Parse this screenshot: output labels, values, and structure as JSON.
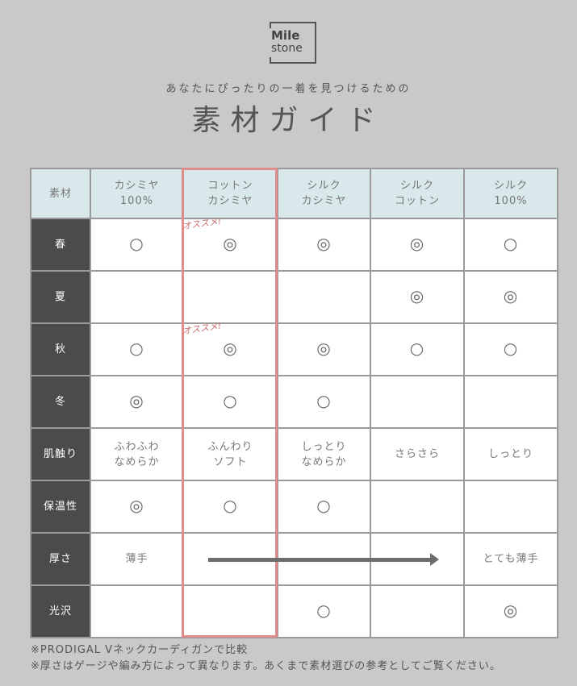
{
  "logo": {
    "line1": "Mile",
    "line2": "stone"
  },
  "subtitle": "あなたにぴったりの一着を見つけるための",
  "title": "素材ガイド",
  "table": {
    "corner": "素材",
    "columns": [
      [
        "カシミヤ",
        "100%"
      ],
      [
        "コットン",
        "カシミヤ"
      ],
      [
        "シルク",
        "カシミヤ"
      ],
      [
        "シルク",
        "コットン"
      ],
      [
        "シルク",
        "100%"
      ]
    ],
    "highlight_column": 1,
    "recommend_label": "オススメ!",
    "rows": [
      {
        "label": "春",
        "cells": [
          "○",
          "◎",
          "◎",
          "◎",
          "○"
        ],
        "recommend": true
      },
      {
        "label": "夏",
        "cells": [
          "",
          "",
          "",
          "◎",
          "◎"
        ]
      },
      {
        "label": "秋",
        "cells": [
          "○",
          "◎",
          "◎",
          "○",
          "○"
        ],
        "recommend": true
      },
      {
        "label": "冬",
        "cells": [
          "◎",
          "○",
          "○",
          "",
          ""
        ]
      },
      {
        "label": "肌触り",
        "cells": [
          [
            "ふわふわ",
            "なめらか"
          ],
          [
            "ふんわり",
            "ソフト"
          ],
          [
            "しっとり",
            "なめらか"
          ],
          "さらさら",
          "しっとり"
        ]
      },
      {
        "label": "保温性",
        "cells": [
          "◎",
          "○",
          "○",
          "",
          ""
        ]
      },
      {
        "label": "厚さ",
        "cells": [
          "薄手",
          "",
          "",
          "",
          "とても薄手"
        ]
      },
      {
        "label": "光沢",
        "cells": [
          "",
          "",
          "○",
          "",
          "◎"
        ]
      }
    ]
  },
  "notes": [
    "※PRODIGAL Vネックカーディガンで比較",
    "※厚さはゲージや編み方によって異なります。あくまで素材選びの参考としてご覧ください。"
  ],
  "colors": {
    "background": "#c9c9c9",
    "header": "#d9e8eb",
    "row_label": "#4b4b4b",
    "highlight": "#e08c8c"
  }
}
